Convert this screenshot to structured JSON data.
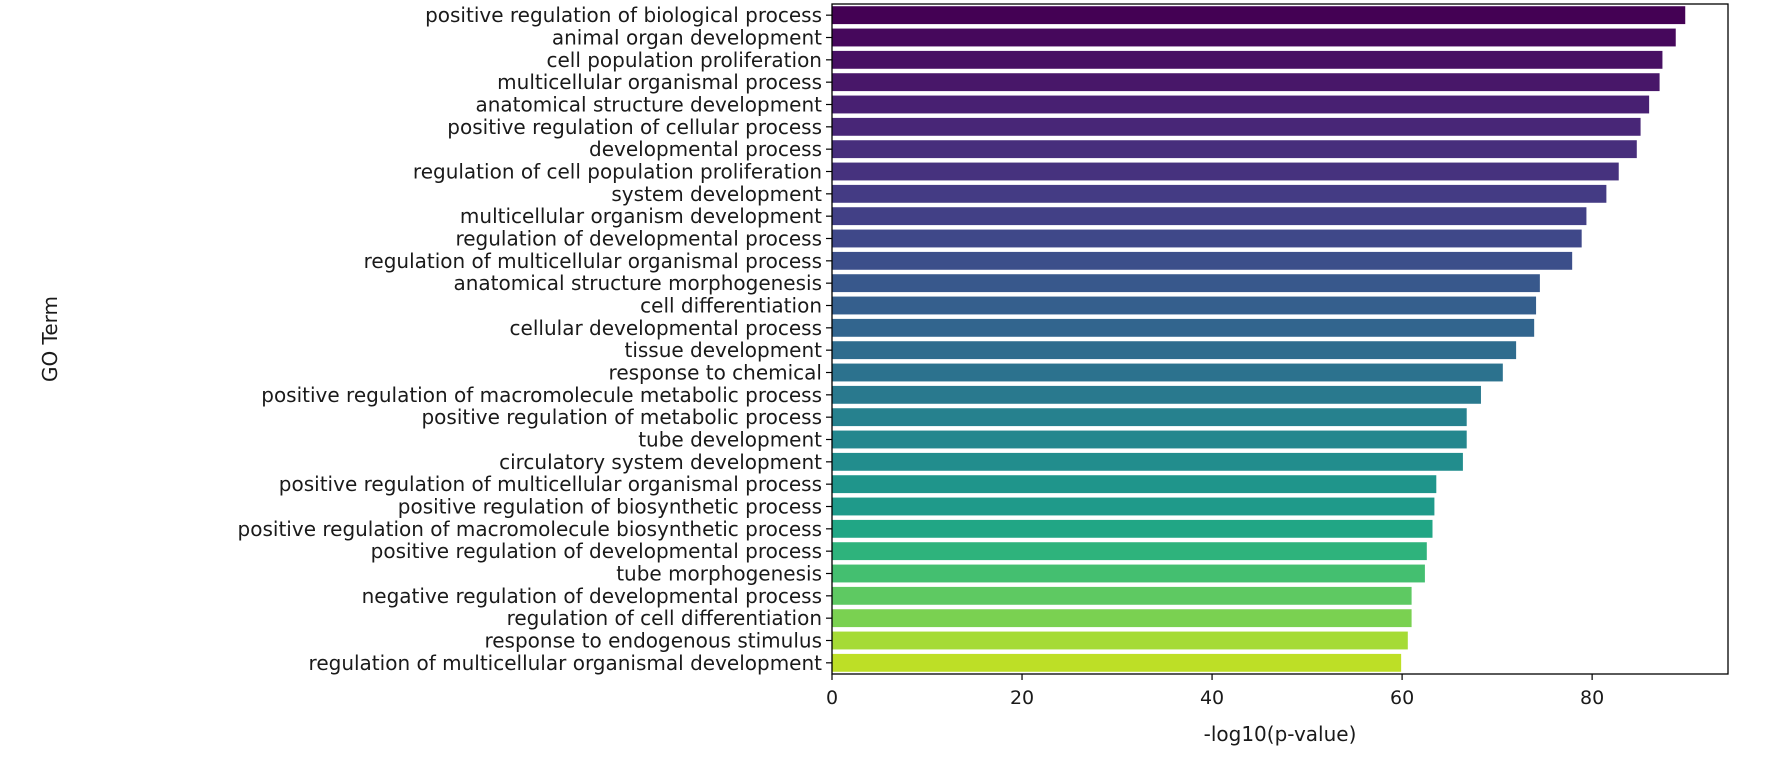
{
  "chart_data": {
    "type": "bar",
    "orientation": "horizontal",
    "xlabel": "-log10(p-value)",
    "ylabel": "GO Term",
    "xlim": [
      0,
      94.3
    ],
    "xticks": [
      "0",
      "20",
      "40",
      "60",
      "80"
    ],
    "grid": false,
    "palette": "viridis",
    "categories": [
      "positive regulation of biological process",
      "animal organ development",
      "cell population proliferation",
      "multicellular organismal process",
      "anatomical structure development",
      "positive regulation of cellular process",
      "developmental process",
      "regulation of cell population proliferation",
      "system development",
      "multicellular organism development",
      "regulation of developmental process",
      "regulation of multicellular organismal process",
      "anatomical structure morphogenesis",
      "cell differentiation",
      "cellular developmental process",
      "tissue development",
      "response to chemical",
      "positive regulation of macromolecule metabolic process",
      "positive regulation of metabolic process",
      "tube development",
      "circulatory system development",
      "positive regulation of multicellular organismal process",
      "positive regulation of biosynthetic process",
      "positive regulation of macromolecule biosynthetic process",
      "positive regulation of developmental process",
      "tube morphogenesis",
      "negative regulation of developmental process",
      "regulation of cell differentiation",
      "response to endogenous stimulus",
      "regulation of multicellular organismal development"
    ],
    "values": [
      89.8,
      88.8,
      87.4,
      87.1,
      86.0,
      85.1,
      84.7,
      82.8,
      81.5,
      79.4,
      78.9,
      77.9,
      74.5,
      74.1,
      73.9,
      72.0,
      70.6,
      68.3,
      66.8,
      66.8,
      66.4,
      63.6,
      63.4,
      63.2,
      62.6,
      62.4,
      61.0,
      61.0,
      60.6,
      59.9
    ],
    "colors": [
      "#440154",
      "#46085c",
      "#471063",
      "#481769",
      "#482072",
      "#482677",
      "#472e7c",
      "#46327e",
      "#443b84",
      "#424086",
      "#3f4889",
      "#3c4f8a",
      "#38588c",
      "#355f8d",
      "#32658e",
      "#2f6c8e",
      "#2c728e",
      "#29798e",
      "#26818e",
      "#24878e",
      "#228d8d",
      "#1f958b",
      "#1f9a8a",
      "#21a685",
      "#2eb37c",
      "#44bf70",
      "#5ec962",
      "#7ad151",
      "#a5db36",
      "#bddf26"
    ]
  }
}
